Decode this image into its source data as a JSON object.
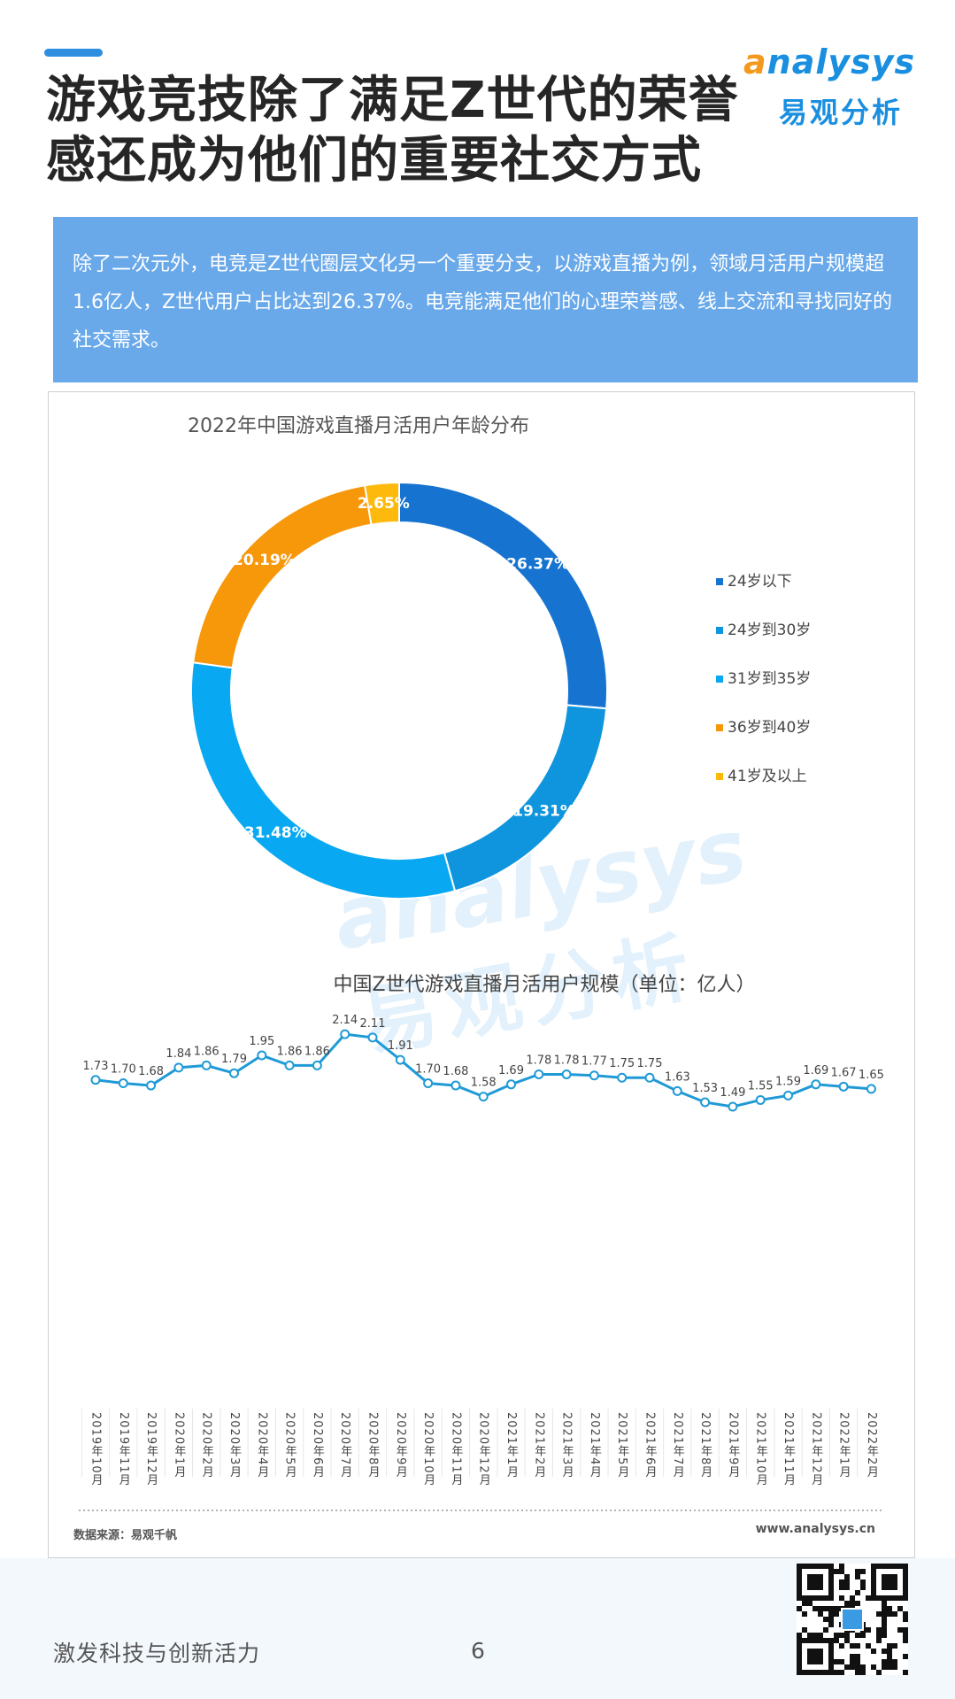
{
  "title": "游戏竞技除了满足Z世代的荣誉感还成为他们的重要社交方式",
  "logo": {
    "en_prefix": "a",
    "en_rest": "nalysys",
    "cn": "易观分析"
  },
  "summary": "除了二次元外，电竞是Z世代圈层文化另一个重要分支，以游戏直播为例，领域月活用户规模超1.6亿人，Z世代用户占比达到26.37%。电竞能满足他们的心理荣誉感、线上交流和寻找同好的社交需求。",
  "watermark": {
    "en": "analysys",
    "cn": "易观分析"
  },
  "chart_data": [
    {
      "type": "pie",
      "donut": true,
      "title": "2022年中国游戏直播月活用户年龄分布",
      "categories": [
        "24岁以下",
        "24岁到30岁",
        "31岁到35岁",
        "36岁到40岁",
        "41岁及以上"
      ],
      "values": [
        26.37,
        19.31,
        31.48,
        20.19,
        2.65
      ],
      "labels": [
        "26.37%",
        "19.31%",
        "31.48%",
        "20.19%",
        "2.65%"
      ],
      "colors": [
        "#1673d0",
        "#0e95dd",
        "#08a9f2",
        "#f7980b",
        "#fdba0d"
      ],
      "legend": "right"
    },
    {
      "type": "line",
      "title": "中国Z世代游戏直播月活用户规模（单位：亿人）",
      "categories": [
        "2019年10月",
        "2019年11月",
        "2019年12月",
        "2020年1月",
        "2020年2月",
        "2020年3月",
        "2020年4月",
        "2020年5月",
        "2020年6月",
        "2020年7月",
        "2020年8月",
        "2020年9月",
        "2020年10月",
        "2020年11月",
        "2020年12月",
        "2021年1月",
        "2021年2月",
        "2021年3月",
        "2021年4月",
        "2021年5月",
        "2021年6月",
        "2021年7月",
        "2021年8月",
        "2021年9月",
        "2021年10月",
        "2021年11月",
        "2021年12月",
        "2022年1月",
        "2022年2月"
      ],
      "series": [
        {
          "values": [
            1.73,
            1.7,
            1.68,
            1.84,
            1.86,
            1.79,
            1.95,
            1.86,
            1.86,
            2.14,
            2.11,
            1.91,
            1.7,
            1.68,
            1.58,
            1.69,
            1.78,
            1.78,
            1.77,
            1.75,
            1.75,
            1.63,
            1.53,
            1.49,
            1.55,
            1.59,
            1.69,
            1.67,
            1.65
          ],
          "labels": [
            "1.73",
            "1.70",
            "1.68",
            "1.84",
            "1.86",
            "1.79",
            "1.95",
            "1.86",
            "1.86",
            "2.14",
            "2.11",
            "1.91",
            "1.70",
            "1.68",
            "1.58",
            "1.69",
            "1.78",
            "1.78",
            "1.77",
            "1.75",
            "1.75",
            "1.63",
            "1.53",
            "1.49",
            "1.55",
            "1.59",
            "1.69",
            "1.67",
            "1.65"
          ],
          "color": "#1f9ad6"
        }
      ],
      "grid": false
    }
  ],
  "source": "数据来源：易观千帆",
  "site": "www.analysys.cn",
  "footer": {
    "slogan": "激发科技与创新活力",
    "page": "6"
  }
}
